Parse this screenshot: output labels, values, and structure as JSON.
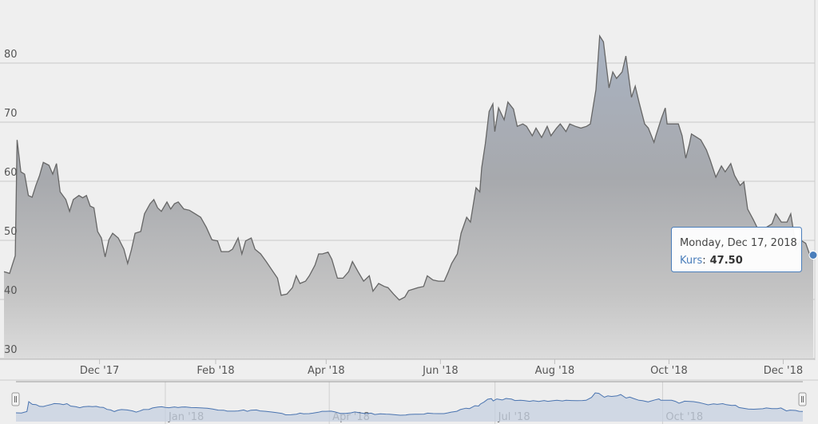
{
  "chart_data": {
    "type": "area",
    "x": [
      "2017-10-11",
      "2017-10-14",
      "2017-10-17",
      "2017-10-18",
      "2017-10-20",
      "2017-10-22",
      "2017-10-24",
      "2017-10-26",
      "2017-10-28",
      "2017-10-30",
      "2017-11-01",
      "2017-11-04",
      "2017-11-06",
      "2017-11-08",
      "2017-11-10",
      "2017-11-13",
      "2017-11-15",
      "2017-11-17",
      "2017-11-20",
      "2017-11-22",
      "2017-11-24",
      "2017-11-26",
      "2017-11-28",
      "2017-11-30",
      "2017-12-02",
      "2017-12-04",
      "2017-12-06",
      "2017-12-08",
      "2017-12-11",
      "2017-12-14",
      "2017-12-16",
      "2017-12-18",
      "2017-12-20",
      "2017-12-23",
      "2017-12-25",
      "2017-12-28",
      "2017-12-30",
      "2018-01-01",
      "2018-01-03",
      "2018-01-06",
      "2018-01-08",
      "2018-01-10",
      "2018-01-12",
      "2018-01-15",
      "2018-01-18",
      "2018-01-21",
      "2018-01-24",
      "2018-01-27",
      "2018-01-30",
      "2018-02-02",
      "2018-02-04",
      "2018-02-08",
      "2018-02-10",
      "2018-02-13",
      "2018-02-15",
      "2018-02-17",
      "2018-02-20",
      "2018-02-22",
      "2018-02-25",
      "2018-02-28",
      "2018-03-03",
      "2018-03-06",
      "2018-03-08",
      "2018-03-11",
      "2018-03-14",
      "2018-03-16",
      "2018-03-18",
      "2018-03-21",
      "2018-03-23",
      "2018-03-26",
      "2018-03-28",
      "2018-03-30",
      "2018-04-02",
      "2018-04-04",
      "2018-04-07",
      "2018-04-10",
      "2018-04-13",
      "2018-04-15",
      "2018-04-18",
      "2018-04-21",
      "2018-04-24",
      "2018-04-26",
      "2018-04-29",
      "2018-05-02",
      "2018-05-04",
      "2018-05-07",
      "2018-05-10",
      "2018-05-13",
      "2018-05-15",
      "2018-05-18",
      "2018-05-20",
      "2018-05-23",
      "2018-05-25",
      "2018-05-28",
      "2018-05-31",
      "2018-06-03",
      "2018-06-05",
      "2018-06-07",
      "2018-06-10",
      "2018-06-12",
      "2018-06-15",
      "2018-06-17",
      "2018-06-20",
      "2018-06-22",
      "2018-06-23",
      "2018-06-25",
      "2018-06-27",
      "2018-06-29",
      "2018-06-30",
      "2018-07-02",
      "2018-07-05",
      "2018-07-07",
      "2018-07-10",
      "2018-07-12",
      "2018-07-15",
      "2018-07-17",
      "2018-07-20",
      "2018-07-22",
      "2018-07-25",
      "2018-07-28",
      "2018-07-30",
      "2018-08-02",
      "2018-08-04",
      "2018-08-07",
      "2018-08-09",
      "2018-08-12",
      "2018-08-15",
      "2018-08-18",
      "2018-08-20",
      "2018-08-23",
      "2018-08-25",
      "2018-08-27",
      "2018-08-30",
      "2018-09-01",
      "2018-09-03",
      "2018-09-06",
      "2018-09-08",
      "2018-09-11",
      "2018-09-13",
      "2018-09-15",
      "2018-09-18",
      "2018-09-20",
      "2018-09-23",
      "2018-09-24",
      "2018-09-27",
      "2018-09-29",
      "2018-09-30",
      "2018-10-03",
      "2018-10-06",
      "2018-10-08",
      "2018-10-10",
      "2018-10-12",
      "2018-10-13",
      "2018-10-16",
      "2018-10-18",
      "2018-10-21",
      "2018-10-23",
      "2018-10-26",
      "2018-10-29",
      "2018-10-31",
      "2018-11-03",
      "2018-11-05",
      "2018-11-08",
      "2018-11-10",
      "2018-11-12",
      "2018-11-15",
      "2018-11-17",
      "2018-11-20",
      "2018-11-22",
      "2018-11-25",
      "2018-11-27",
      "2018-11-30",
      "2018-12-03",
      "2018-12-05",
      "2018-12-08",
      "2018-12-10",
      "2018-12-13",
      "2018-12-15",
      "2018-12-17"
    ],
    "series": [
      {
        "name": "Kurs",
        "color": "#666666",
        "values": [
          44.7,
          44.4,
          47.4,
          67,
          61.6,
          61.2,
          57.6,
          57.3,
          59.3,
          61,
          63.2,
          62.7,
          61.2,
          63,
          58.2,
          56.9,
          54.9,
          56.9,
          57.6,
          57.2,
          57.6,
          55.8,
          55.5,
          51.5,
          50.4,
          47.2,
          50.1,
          51.2,
          50.4,
          48.5,
          46.1,
          48.4,
          51.2,
          51.5,
          54.5,
          56.2,
          56.9,
          55.5,
          54.9,
          56.5,
          55.3,
          56.2,
          56.5,
          55.3,
          55.1,
          54.5,
          53.9,
          52.2,
          50.1,
          49.9,
          48.1,
          48.1,
          48.5,
          50.4,
          47.7,
          49.9,
          50.4,
          48.5,
          47.7,
          46.4,
          45,
          43.6,
          40.7,
          40.9,
          42,
          44,
          42.7,
          43.1,
          44,
          45.8,
          47.7,
          47.7,
          48,
          46.8,
          43.6,
          43.6,
          44.7,
          46.4,
          44.7,
          43.1,
          44,
          41.4,
          42.7,
          42.2,
          42,
          40.9,
          39.9,
          40.4,
          41.5,
          41.8,
          42,
          42.2,
          44,
          43.3,
          43.1,
          43.1,
          44.5,
          46.1,
          47.7,
          51.2,
          53.9,
          53.1,
          58.9,
          58.2,
          62.3,
          66.4,
          71.8,
          73.1,
          68.4,
          72.4,
          70.4,
          73.4,
          72.2,
          69.3,
          69.7,
          69.3,
          67.7,
          69,
          67.4,
          69.3,
          67.7,
          69,
          69.7,
          68.4,
          69.7,
          69.3,
          69,
          69.3,
          69.7,
          75.5,
          84.6,
          83.6,
          75.8,
          78.5,
          77.4,
          78.5,
          81.2,
          74.2,
          76.1,
          73.4,
          69.7,
          69,
          66.6,
          67.7,
          70.7,
          72.4,
          69.7,
          69.7,
          69.7,
          67.7,
          63.9,
          66.4,
          68,
          67.4,
          67,
          65.3,
          63.6,
          60.7,
          62.6,
          61.6,
          63,
          61,
          59.3,
          59.9,
          55.3,
          53.5,
          52.2,
          51.8,
          52.2,
          52.8,
          54.5,
          53.1,
          53.1,
          54.5,
          48.5,
          50.1,
          49.5,
          47.7,
          47.5
        ]
      }
    ],
    "xlim": [
      "2017-10-11",
      "2018-12-17"
    ],
    "xticks": [
      {
        "value": "2017-12-01",
        "label": "Dec '17"
      },
      {
        "value": "2018-02-01",
        "label": "Feb '18"
      },
      {
        "value": "2018-04-01",
        "label": "Apr '18"
      },
      {
        "value": "2018-06-01",
        "label": "Jun '18"
      },
      {
        "value": "2018-08-01",
        "label": "Aug '18"
      },
      {
        "value": "2018-10-01",
        "label": "Oct '18"
      },
      {
        "value": "2018-12-01",
        "label": "Dec '18"
      }
    ],
    "ylim": [
      30,
      90
    ],
    "yticks": [
      30,
      40,
      50,
      60,
      70,
      80
    ],
    "grid": true,
    "navigator_xticks": [
      {
        "value": "2018-01-01",
        "label": "Jan '18"
      },
      {
        "value": "2018-04-01",
        "label": "Apr '18"
      },
      {
        "value": "2018-07-01",
        "label": "Jul '18"
      },
      {
        "value": "2018-10-01",
        "label": "Oct '18"
      }
    ],
    "tooltip": {
      "header": "Monday, Dec 17, 2018",
      "separator": ":",
      "value_label": "47.50"
    }
  }
}
